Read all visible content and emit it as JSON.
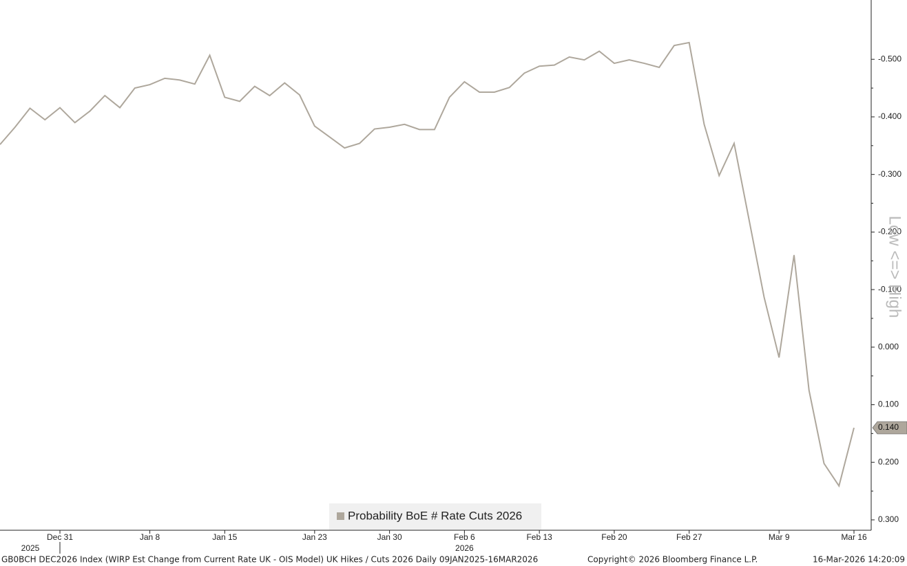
{
  "chart_data": {
    "type": "line",
    "series": [
      {
        "name": "Probability BoE # Rate Cuts 2026",
        "color": "#aea79c",
        "values": [
          -0.352,
          -0.382,
          -0.415,
          -0.395,
          -0.416,
          -0.39,
          -0.41,
          -0.437,
          -0.416,
          -0.45,
          -0.456,
          -0.467,
          -0.464,
          -0.457,
          -0.507,
          -0.434,
          -0.427,
          -0.453,
          -0.437,
          -0.459,
          -0.438,
          -0.384,
          -0.365,
          -0.346,
          -0.354,
          -0.379,
          -0.382,
          -0.387,
          -0.378,
          -0.378,
          -0.434,
          -0.461,
          -0.443,
          -0.443,
          -0.451,
          -0.476,
          -0.488,
          -0.49,
          -0.504,
          -0.499,
          -0.514,
          -0.493,
          -0.499,
          -0.493,
          -0.486,
          -0.524,
          -0.529,
          -0.387,
          -0.298,
          -0.354,
          -0.221,
          -0.087,
          0.018,
          -0.16,
          0.075,
          0.202,
          0.241,
          0.14
        ],
        "value_labels": [
          null,
          null,
          null,
          null,
          null,
          null,
          null,
          null,
          null,
          null,
          null,
          null,
          null,
          null,
          null,
          null,
          null,
          null,
          null,
          null,
          null,
          null,
          null,
          null,
          null,
          null,
          null,
          null,
          null,
          null,
          null,
          null,
          null,
          null,
          null,
          null,
          null,
          null,
          null,
          null,
          null,
          null,
          null,
          null,
          null,
          null,
          null,
          null,
          null,
          null,
          null,
          null,
          null,
          null,
          null,
          null,
          null,
          "0.140"
        ]
      }
    ],
    "categories": [
      null,
      null,
      null,
      null,
      "Dec 31",
      null,
      null,
      null,
      null,
      null,
      "Jan 8",
      null,
      null,
      null,
      null,
      "Jan 15",
      null,
      null,
      null,
      null,
      null,
      "Jan 23",
      null,
      null,
      null,
      null,
      "Jan 30",
      null,
      null,
      null,
      null,
      "Feb 6",
      null,
      null,
      null,
      null,
      "Feb 13",
      null,
      null,
      null,
      null,
      "Feb 20",
      null,
      null,
      null,
      null,
      "Feb 27",
      null,
      null,
      null,
      null,
      null,
      "Mar 9",
      null,
      null,
      null,
      null,
      "Mar 16"
    ],
    "year_labels": [
      "2025",
      "2026"
    ],
    "ylim": [
      0.318,
      -0.603
    ],
    "yticks": [
      {
        "value": -0.5,
        "label": "-0.500"
      },
      {
        "value": -0.4,
        "label": "-0.400"
      },
      {
        "value": -0.3,
        "label": "-0.300"
      },
      {
        "value": -0.2,
        "label": "-0.200"
      },
      {
        "value": -0.1,
        "label": "-0.100"
      },
      {
        "value": 0,
        "label": "0.000"
      },
      {
        "value": 0.1,
        "label": "0.100"
      },
      {
        "value": 0.2,
        "label": "0.200"
      },
      {
        "value": 0.3,
        "label": "0.300"
      }
    ],
    "y_axis_label": "Low <=> High",
    "legend": "bottom",
    "footer_left": "GB0BCH DEC2026 Index (WIRP Est Change from Current Rate UK - OIS Model) UK Hikes / Cuts 2026 Daily 09JAN2025-16MAR2026",
    "footer_center": "Copyright© 2026 Bloomberg Finance L.P.",
    "footer_right": "16-Mar-2026 14:20:09"
  }
}
